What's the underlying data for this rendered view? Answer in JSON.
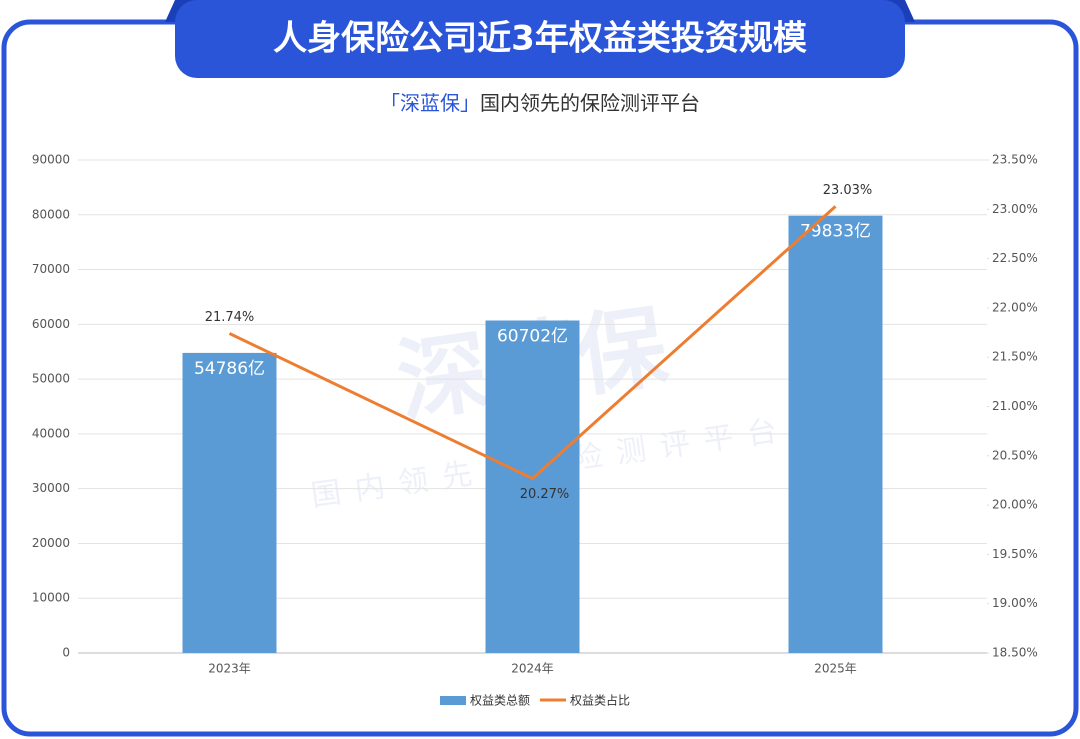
{
  "header": {
    "title": "人身保险公司近3年权益类投资规模",
    "brand": "「深蓝保」",
    "tagline": "国内领先的保险测评平台"
  },
  "watermark": {
    "logo": "深蓝保",
    "tagline": "国内领先的保险测评平台"
  },
  "chart_data": {
    "type": "bar_line",
    "categories": [
      "2023年",
      "2024年",
      "2025年"
    ],
    "series": [
      {
        "name": "权益类总额",
        "type": "bar",
        "color": "#5b9bd5",
        "values": [
          54786,
          60702,
          79833
        ],
        "value_labels": [
          "54786亿",
          "60702亿",
          "79833亿"
        ]
      },
      {
        "name": "权益类占比",
        "type": "line",
        "axis": "y2",
        "color": "#ed7d31",
        "values": [
          21.74,
          20.27,
          23.03
        ],
        "value_labels": [
          "21.74%",
          "20.27%",
          "23.03%"
        ]
      }
    ],
    "ylim": [
      0,
      90000
    ],
    "yticks": [
      0,
      10000,
      20000,
      30000,
      40000,
      50000,
      60000,
      70000,
      80000,
      90000
    ],
    "y2lim": [
      18.5,
      23.5
    ],
    "y2ticks": [
      {
        "value": 18.5,
        "label": "18.50%"
      },
      {
        "value": 19,
        "label": "19.00%"
      },
      {
        "value": 19.5,
        "label": "19.50%"
      },
      {
        "value": 20,
        "label": "20.00%"
      },
      {
        "value": 20.5,
        "label": "20.50%"
      },
      {
        "value": 21,
        "label": "21.00%"
      },
      {
        "value": 21.5,
        "label": "21.50%"
      },
      {
        "value": 22,
        "label": "22.00%"
      },
      {
        "value": 22.5,
        "label": "22.50%"
      },
      {
        "value": 23,
        "label": "23.00%"
      },
      {
        "value": 23.5,
        "label": "23.50%"
      }
    ],
    "grid": true,
    "legend": "bottom"
  }
}
